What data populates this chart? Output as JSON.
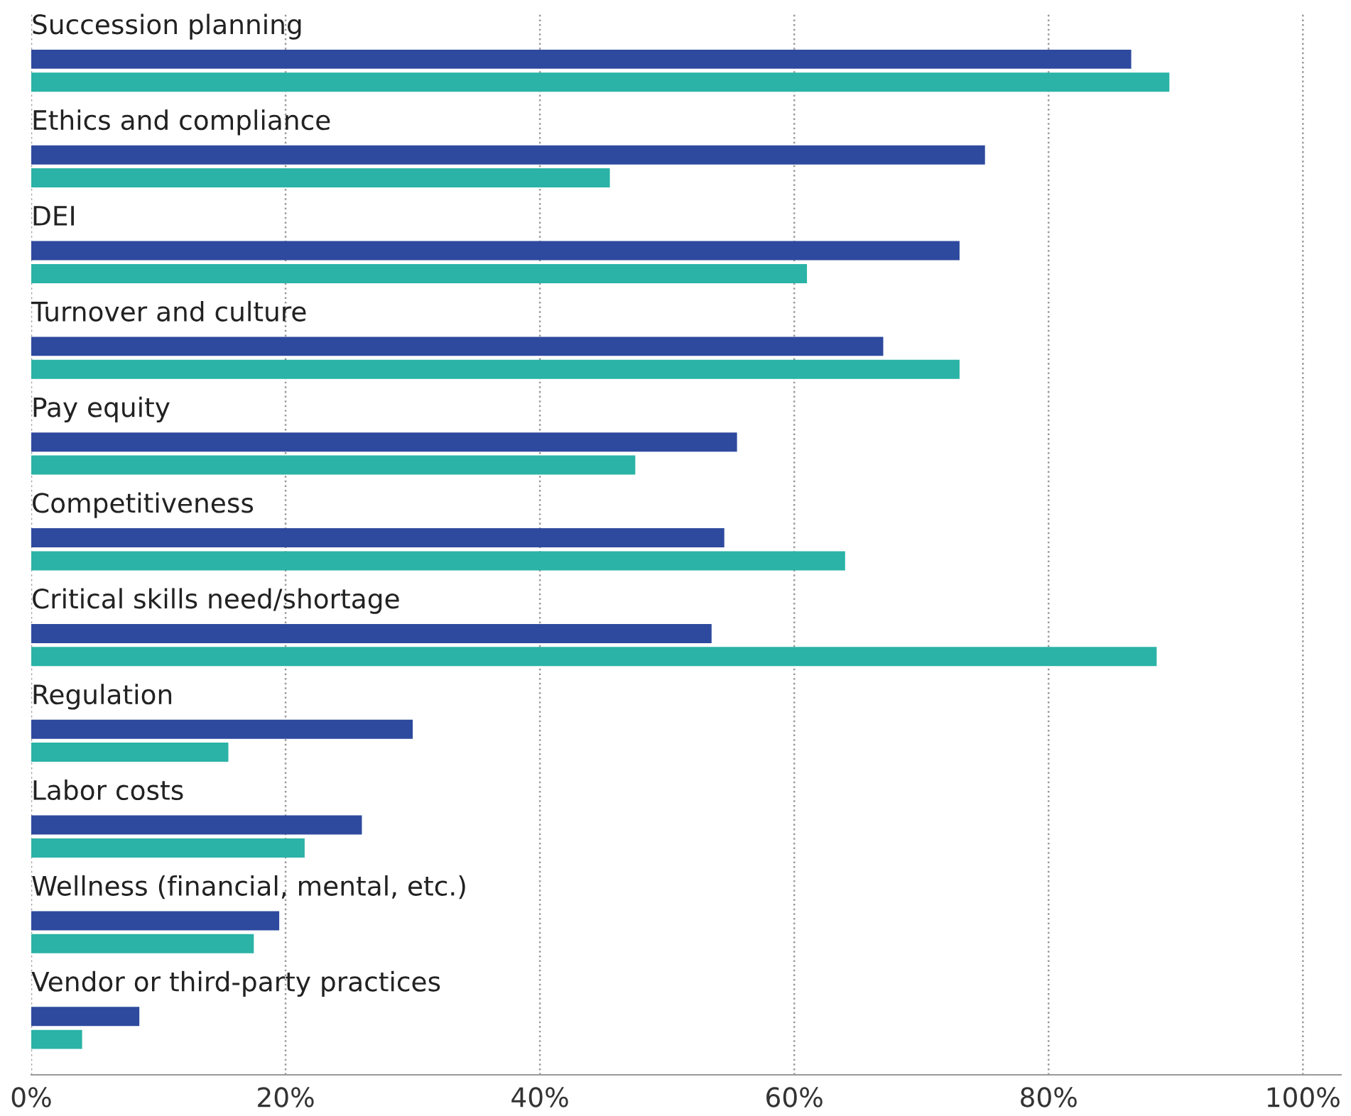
{
  "chart_data": {
    "type": "bar",
    "orientation": "horizontal",
    "categories": [
      "Succession planning",
      "Ethics and compliance",
      "DEI",
      "Turnover and culture",
      "Pay equity",
      "Competitiveness",
      "Critical skills need/shortage",
      "Regulation",
      "Labor costs",
      "Wellness (financial, mental, etc.)",
      "Vendor or third-party practices"
    ],
    "series": [
      {
        "color": "#2e4a9e",
        "values": [
          86.5,
          75,
          73,
          67,
          55.5,
          54.5,
          53.5,
          30,
          26,
          19.5,
          8.5
        ]
      },
      {
        "color": "#2ab3a6",
        "values": [
          89.5,
          45.5,
          61,
          73,
          47.5,
          64,
          88.5,
          15.5,
          21.5,
          17.5,
          4
        ]
      }
    ],
    "xlim": [
      0,
      103
    ],
    "xticks": [
      {
        "value": 0,
        "label": "0%"
      },
      {
        "value": 20,
        "label": "20%"
      },
      {
        "value": 40,
        "label": "40%"
      },
      {
        "value": 60,
        "label": "60%"
      },
      {
        "value": 80,
        "label": "80%"
      },
      {
        "value": 100,
        "label": "100%"
      }
    ],
    "grid": "x",
    "legend": false
  }
}
